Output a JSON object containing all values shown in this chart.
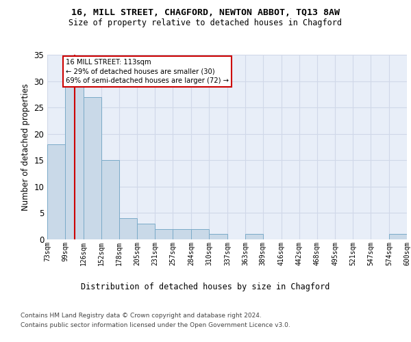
{
  "title": "16, MILL STREET, CHAGFORD, NEWTON ABBOT, TQ13 8AW",
  "subtitle": "Size of property relative to detached houses in Chagford",
  "xlabel": "Distribution of detached houses by size in Chagford",
  "ylabel": "Number of detached properties",
  "bin_labels": [
    "73sqm",
    "99sqm",
    "126sqm",
    "152sqm",
    "178sqm",
    "205sqm",
    "231sqm",
    "257sqm",
    "284sqm",
    "310sqm",
    "337sqm",
    "363sqm",
    "389sqm",
    "416sqm",
    "442sqm",
    "468sqm",
    "495sqm",
    "521sqm",
    "547sqm",
    "574sqm",
    "600sqm"
  ],
  "bar_heights": [
    18,
    29,
    27,
    15,
    4,
    3,
    2,
    2,
    2,
    1,
    0,
    1,
    0,
    0,
    0,
    0,
    0,
    0,
    0,
    1,
    0
  ],
  "bar_color": "#c9d9e8",
  "bar_edge_color": "#7aaac8",
  "grid_color": "#d0d8e8",
  "bg_color": "#e8eef8",
  "annotation_box_color": "#cc0000",
  "annotation_line_color": "#cc0000",
  "annotation_text": "16 MILL STREET: 113sqm\n← 29% of detached houses are smaller (30)\n69% of semi-detached houses are larger (72) →",
  "property_size": 113,
  "bin_edges": [
    73,
    99,
    126,
    152,
    178,
    205,
    231,
    257,
    284,
    310,
    337,
    363,
    389,
    416,
    442,
    468,
    495,
    521,
    547,
    574,
    600
  ],
  "ylim": [
    0,
    35
  ],
  "yticks": [
    0,
    5,
    10,
    15,
    20,
    25,
    30,
    35
  ],
  "footer_line1": "Contains HM Land Registry data © Crown copyright and database right 2024.",
  "footer_line2": "Contains public sector information licensed under the Open Government Licence v3.0."
}
